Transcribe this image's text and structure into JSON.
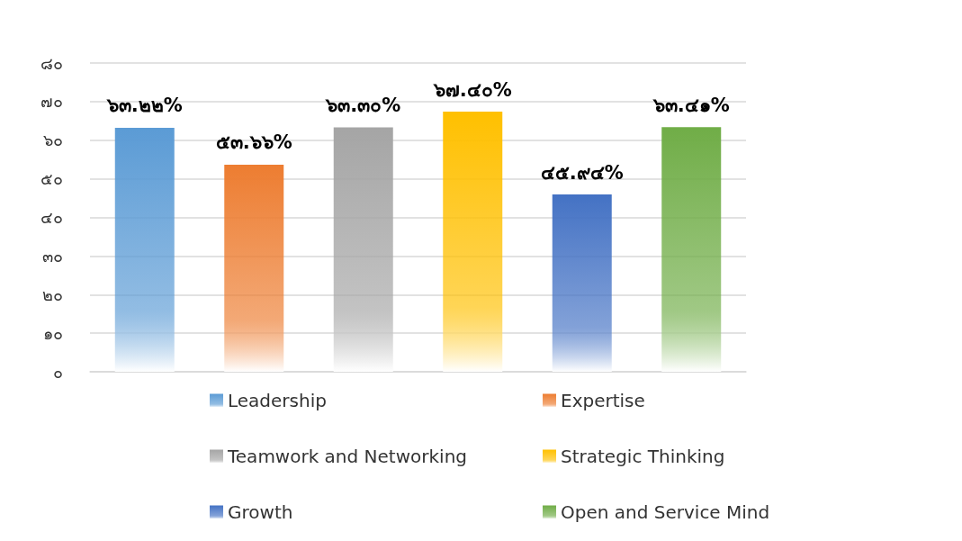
{
  "chart_data": {
    "type": "bar",
    "categories": [
      null,
      null,
      null,
      null,
      null,
      null
    ],
    "series": [
      {
        "name": "Leadership",
        "color": "#5b9bd5",
        "values": [
          63.22,
          null,
          null,
          null,
          null,
          null
        ],
        "value_labels": [
          "๖๓.๒๒%",
          null,
          null,
          null,
          null,
          null
        ]
      },
      {
        "name": "Expertise",
        "color": "#ed7d31",
        "values": [
          null,
          53.66,
          null,
          null,
          null,
          null
        ],
        "value_labels": [
          null,
          "๕๓.๖๖%",
          null,
          null,
          null,
          null
        ]
      },
      {
        "name": "Teamwork and Networking",
        "color": "#a5a5a5",
        "values": [
          null,
          null,
          63.3,
          null,
          null,
          null
        ],
        "value_labels": [
          null,
          null,
          "๖๓.๓๐%",
          null,
          null,
          null
        ]
      },
      {
        "name": "Strategic Thinking",
        "color": "#ffc000",
        "values": [
          null,
          null,
          null,
          67.4,
          null,
          null
        ],
        "value_labels": [
          null,
          null,
          null,
          "๖๗.๔๐%",
          null,
          null
        ]
      },
      {
        "name": "Growth",
        "color": "#4472c4",
        "values": [
          null,
          null,
          null,
          null,
          45.94,
          null
        ],
        "value_labels": [
          null,
          null,
          null,
          null,
          "๔๕.๙๔%",
          null
        ]
      },
      {
        "name": "Open and Service Mind",
        "color": "#70ad47",
        "values": [
          null,
          null,
          null,
          null,
          null,
          63.41
        ],
        "value_labels": [
          null,
          null,
          null,
          null,
          null,
          "๖๓.๔๑%"
        ]
      }
    ],
    "ylim": [
      0,
      80
    ],
    "yticks": [
      {
        "value": 0,
        "label": "๐"
      },
      {
        "value": 10,
        "label": "๑๐"
      },
      {
        "value": 20,
        "label": "๒๐"
      },
      {
        "value": 30,
        "label": "๓๐"
      },
      {
        "value": 40,
        "label": "๔๐"
      },
      {
        "value": 50,
        "label": "๕๐"
      },
      {
        "value": 60,
        "label": "๖๐"
      },
      {
        "value": 70,
        "label": "๗๐"
      },
      {
        "value": 80,
        "label": "๘๐"
      }
    ],
    "grid": "y",
    "legend": "bottom"
  }
}
